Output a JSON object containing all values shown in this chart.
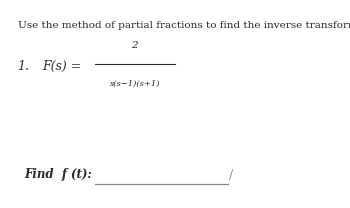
{
  "background_color": "#ffffff",
  "title_text": "Use the method of partial fractions to find the inverse transforms of the functions:",
  "title_fontsize": 7.5,
  "item_number": "1.",
  "F_label": "F(s) =",
  "numerator": "2",
  "denominator": "s(s−1)(s+1)",
  "find_label": "Find  f (t):",
  "text_color": "#2a2a2a",
  "font_family": "serif"
}
